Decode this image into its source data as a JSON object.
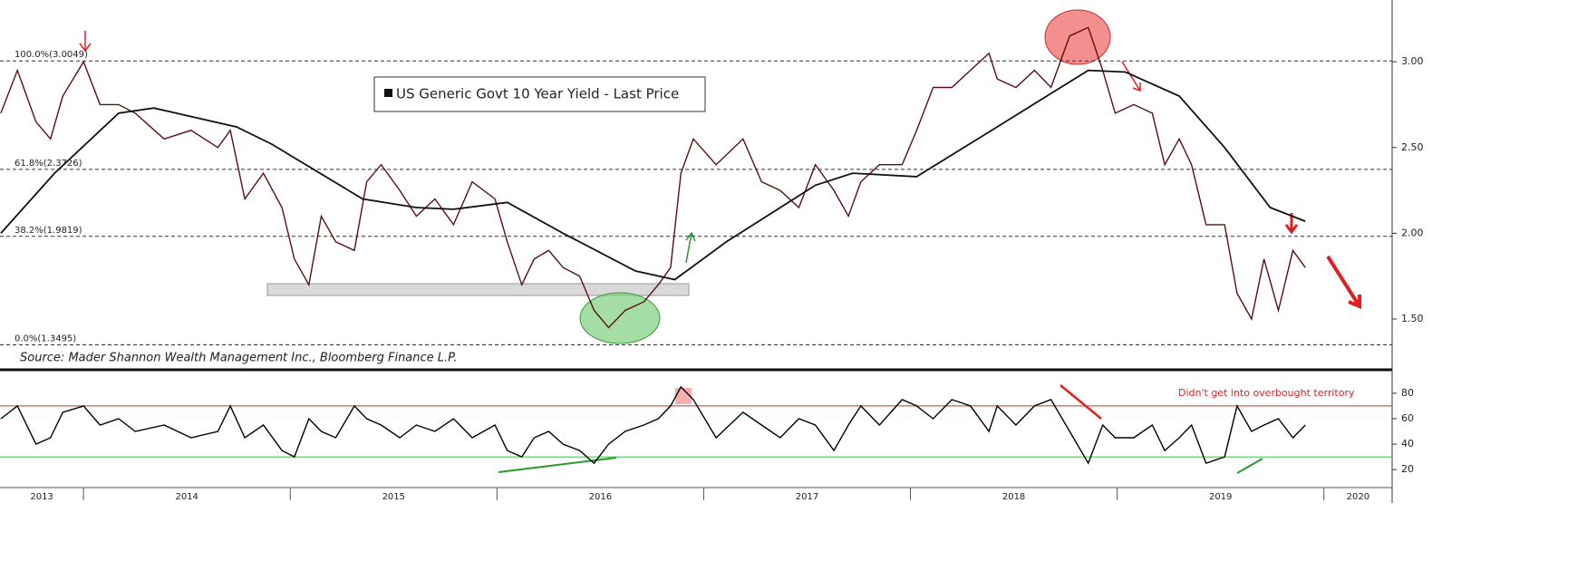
{
  "chart_data": [
    {
      "type": "line",
      "legend": "US Generic Govt 10 Year Yield - Last Price",
      "source": "Source: Mader Shannon Wealth Management Inc., Bloomberg Finance L.P.",
      "xlim": [
        2013.596,
        2020.33
      ],
      "ylim": [
        1.22,
        3.36
      ],
      "yticks": [
        {
          "value": 1.5,
          "label": "1.50"
        },
        {
          "value": 2.0,
          "label": "2.00"
        },
        {
          "value": 2.5,
          "label": "2.50"
        },
        {
          "value": 3.0,
          "label": "3.00"
        }
      ],
      "levels": [
        {
          "value": 3.0049,
          "label": "100.0%(3.0049)"
        },
        {
          "value": 2.3726,
          "label": "61.8%(2.3726)"
        },
        {
          "value": 1.9819,
          "label": "38.2%(1.9819)"
        },
        {
          "value": 1.3495,
          "label": "0.0%(1.3495)"
        }
      ],
      "series": [
        {
          "name": "US Generic Govt 10 Year Yield - Last Price",
          "color": "#5a1010",
          "x": [
            2013.6,
            2013.68,
            2013.77,
            2013.84,
            2013.9,
            2014.0,
            2014.08,
            2014.17,
            2014.25,
            2014.39,
            2014.52,
            2014.65,
            2014.71,
            2014.78,
            2014.87,
            2014.96,
            2015.02,
            2015.09,
            2015.15,
            2015.22,
            2015.31,
            2015.37,
            2015.44,
            2015.53,
            2015.61,
            2015.7,
            2015.79,
            2015.88,
            2015.99,
            2016.05,
            2016.12,
            2016.18,
            2016.25,
            2016.32,
            2016.4,
            2016.47,
            2016.54,
            2016.62,
            2016.71,
            2016.78,
            2016.84,
            2016.89,
            2016.95,
            2017.06,
            2017.19,
            2017.28,
            2017.37,
            2017.46,
            2017.54,
            2017.63,
            2017.7,
            2017.76,
            2017.85,
            2017.96,
            2018.03,
            2018.11,
            2018.2,
            2018.29,
            2018.38,
            2018.42,
            2018.51,
            2018.6,
            2018.68,
            2018.77,
            2018.86,
            2018.93,
            2018.99,
            2019.08,
            2019.17,
            2019.23,
            2019.3,
            2019.36,
            2019.43,
            2019.52,
            2019.58,
            2019.65,
            2019.71,
            2019.78,
            2019.85,
            2019.91
          ],
          "values": [
            2.7,
            2.95,
            2.65,
            2.55,
            2.8,
            3.0,
            2.75,
            2.75,
            2.7,
            2.55,
            2.6,
            2.5,
            2.6,
            2.2,
            2.35,
            2.15,
            1.85,
            1.7,
            2.1,
            1.95,
            1.9,
            2.3,
            2.4,
            2.25,
            2.1,
            2.2,
            2.05,
            2.3,
            2.2,
            1.95,
            1.7,
            1.85,
            1.9,
            1.8,
            1.75,
            1.55,
            1.45,
            1.55,
            1.6,
            1.7,
            1.8,
            2.35,
            2.55,
            2.4,
            2.55,
            2.3,
            2.25,
            2.15,
            2.4,
            2.25,
            2.1,
            2.3,
            2.4,
            2.4,
            2.6,
            2.85,
            2.85,
            2.95,
            3.05,
            2.9,
            2.85,
            2.95,
            2.85,
            3.15,
            3.2,
            2.95,
            2.7,
            2.75,
            2.7,
            2.4,
            2.55,
            2.4,
            2.05,
            2.05,
            1.65,
            1.5,
            1.85,
            1.55,
            1.9,
            1.8
          ]
        },
        {
          "color": "#111111",
          "x": [
            2013.6,
            2013.86,
            2014.17,
            2014.34,
            2014.74,
            2014.91,
            2015.35,
            2015.61,
            2015.79,
            2016.05,
            2016.32,
            2016.67,
            2016.86,
            2017.11,
            2017.54,
            2017.72,
            2018.03,
            2018.42,
            2018.86,
            2019.04,
            2019.3,
            2019.52,
            2019.74,
            2019.91
          ],
          "values": [
            2.0,
            2.35,
            2.7,
            2.73,
            2.62,
            2.52,
            2.2,
            2.15,
            2.14,
            2.18,
            2.0,
            1.78,
            1.73,
            1.95,
            2.28,
            2.35,
            2.33,
            2.62,
            2.95,
            2.94,
            2.8,
            2.5,
            2.15,
            2.07
          ]
        }
      ]
    },
    {
      "type": "line",
      "annotation": "Didn't get into overbought territory",
      "xlim": [
        2013.596,
        2020.33
      ],
      "xticks": [
        2013,
        2014,
        2015,
        2016,
        2017,
        2018,
        2019,
        2020
      ],
      "ylim": [
        8,
        97
      ],
      "yticks": [
        20,
        40,
        60,
        80
      ],
      "levels": [
        {
          "value": 70,
          "color": "#c0392b"
        },
        {
          "value": 30,
          "color": "#2ecc40"
        }
      ],
      "series": [
        {
          "color": "#000000",
          "x": [
            2013.6,
            2013.68,
            2013.77,
            2013.84,
            2013.9,
            2014.0,
            2014.08,
            2014.17,
            2014.25,
            2014.39,
            2014.52,
            2014.65,
            2014.71,
            2014.78,
            2014.87,
            2014.96,
            2015.02,
            2015.09,
            2015.15,
            2015.22,
            2015.31,
            2015.37,
            2015.44,
            2015.53,
            2015.61,
            2015.7,
            2015.79,
            2015.88,
            2015.99,
            2016.05,
            2016.12,
            2016.18,
            2016.25,
            2016.32,
            2016.4,
            2016.47,
            2016.54,
            2016.62,
            2016.71,
            2016.78,
            2016.84,
            2016.89,
            2016.95,
            2017.06,
            2017.19,
            2017.28,
            2017.37,
            2017.46,
            2017.54,
            2017.63,
            2017.7,
            2017.76,
            2017.85,
            2017.96,
            2018.03,
            2018.11,
            2018.2,
            2018.29,
            2018.38,
            2018.42,
            2018.51,
            2018.6,
            2018.68,
            2018.77,
            2018.86,
            2018.93,
            2018.99,
            2019.08,
            2019.17,
            2019.23,
            2019.3,
            2019.36,
            2019.43,
            2019.52,
            2019.58,
            2019.65,
            2019.71,
            2019.78,
            2019.85,
            2019.91
          ],
          "values": [
            60,
            70,
            40,
            45,
            65,
            70,
            55,
            60,
            50,
            55,
            45,
            50,
            70,
            45,
            55,
            35,
            30,
            60,
            50,
            45,
            70,
            60,
            55,
            45,
            55,
            50,
            60,
            45,
            55,
            35,
            30,
            45,
            50,
            40,
            35,
            25,
            40,
            50,
            55,
            60,
            70,
            85,
            75,
            45,
            65,
            55,
            45,
            60,
            55,
            35,
            55,
            70,
            55,
            75,
            70,
            60,
            75,
            70,
            50,
            70,
            55,
            70,
            75,
            50,
            25,
            55,
            45,
            45,
            55,
            35,
            45,
            55,
            25,
            30,
            70,
            50,
            55,
            60,
            45,
            55
          ]
        }
      ]
    }
  ]
}
